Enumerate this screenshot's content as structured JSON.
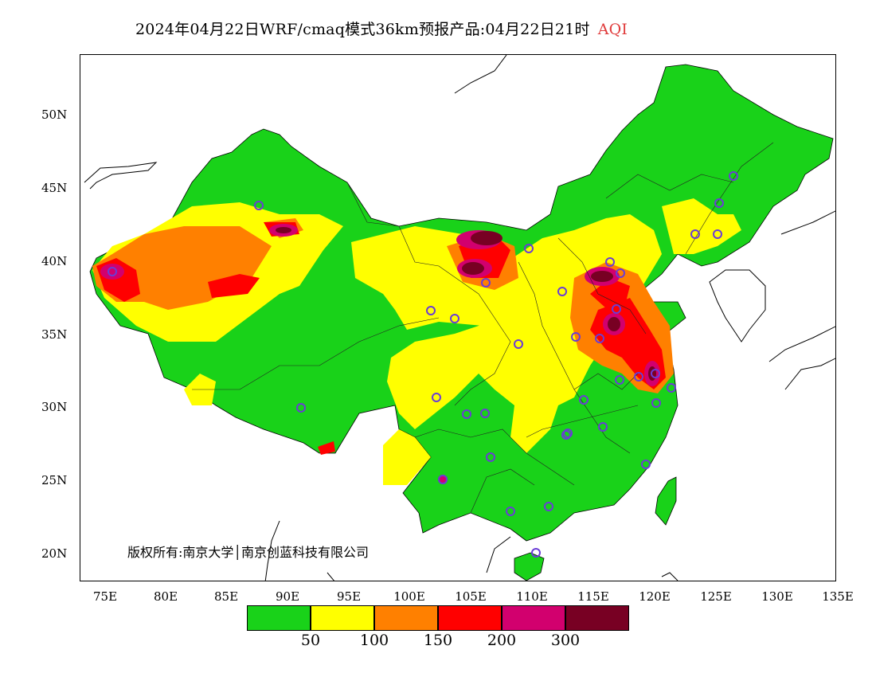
{
  "title": {
    "text": "2024年04月22日WRF/cmaq模式36km预报产品:04月22日21时",
    "product": "AQI",
    "product_color": "#e03c3c"
  },
  "map": {
    "lat_labels": [
      "50N",
      "45N",
      "40N",
      "35N",
      "30N",
      "25N",
      "20N"
    ],
    "lon_labels": [
      "75E",
      "80E",
      "85E",
      "90E",
      "95E",
      "100E",
      "105E",
      "110E",
      "115E",
      "120E",
      "125E",
      "130E",
      "135E"
    ],
    "copyright": "版权所有:南京大学│南京创蓝科技有限公司"
  },
  "legend": {
    "colors": [
      "#19d219",
      "#ffff00",
      "#ff8000",
      "#ff0000",
      "#d2006e",
      "#780023"
    ],
    "values": [
      "50",
      "100",
      "150",
      "200",
      "300"
    ]
  },
  "colors": {
    "good": "#19d219",
    "moderate": "#ffff00",
    "sensitive": "#ff8000",
    "unhealthy": "#ff0000",
    "very_unhealthy": "#d2006e",
    "hazardous": "#780023",
    "station_marker": "#6a3cd6"
  }
}
